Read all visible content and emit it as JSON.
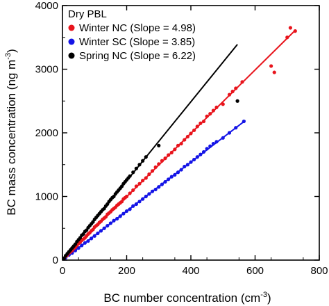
{
  "chart_data": {
    "type": "scatter",
    "xlabel": "BC number concentration (cm",
    "xlabel_sup": "-3",
    "xlabel_suffix": ")",
    "ylabel": "BC mass concentration (ng m",
    "ylabel_sup": "-3",
    "ylabel_suffix": ")",
    "xlim": [
      0,
      800
    ],
    "ylim": [
      0,
      4000
    ],
    "xticks": [
      0,
      200,
      400,
      600,
      800
    ],
    "yticks": [
      0,
      1000,
      2000,
      3000,
      4000
    ],
    "xtick_labels": [
      "0",
      "200",
      "400",
      "600",
      "800"
    ],
    "ytick_labels": [
      "0",
      "1000",
      "2000",
      "3000",
      "4000"
    ],
    "grid": false,
    "legend": {
      "title": "Dry PBL",
      "position": "top-left"
    },
    "series": [
      {
        "name": "Winter NC (Slope = 4.98)",
        "color": "#e8141c",
        "slope": 4.98,
        "fit_x_range": [
          0,
          725
        ],
        "x": [
          5,
          10,
          15,
          20,
          25,
          30,
          35,
          40,
          45,
          50,
          55,
          60,
          65,
          70,
          75,
          80,
          85,
          90,
          95,
          100,
          105,
          110,
          115,
          120,
          125,
          130,
          135,
          140,
          145,
          150,
          155,
          160,
          165,
          170,
          175,
          180,
          185,
          190,
          195,
          200,
          210,
          220,
          230,
          240,
          250,
          260,
          270,
          280,
          290,
          300,
          310,
          320,
          330,
          340,
          350,
          360,
          370,
          380,
          390,
          400,
          410,
          420,
          430,
          440,
          450,
          460,
          470,
          480,
          500,
          520,
          530,
          540,
          560,
          650,
          660,
          700,
          710,
          725
        ],
        "y": [
          30,
          60,
          80,
          110,
          130,
          150,
          180,
          200,
          230,
          260,
          280,
          310,
          330,
          350,
          380,
          410,
          430,
          460,
          480,
          520,
          540,
          560,
          590,
          610,
          640,
          660,
          680,
          720,
          740,
          760,
          790,
          810,
          830,
          860,
          880,
          900,
          920,
          960,
          980,
          1000,
          1050,
          1100,
          1160,
          1200,
          1250,
          1290,
          1350,
          1400,
          1460,
          1510,
          1560,
          1600,
          1650,
          1690,
          1740,
          1800,
          1830,
          1890,
          1940,
          1990,
          2040,
          2100,
          2150,
          2180,
          2260,
          2300,
          2350,
          2400,
          2450,
          2600,
          2650,
          2700,
          2800,
          3050,
          2950,
          3500,
          3650,
          3600
        ]
      },
      {
        "name": "Winter SC (Slope = 3.85)",
        "color": "#1414e6",
        "slope": 3.85,
        "fit_x_range": [
          0,
          570
        ],
        "x": [
          5,
          10,
          20,
          30,
          40,
          50,
          60,
          70,
          80,
          90,
          100,
          110,
          120,
          130,
          140,
          150,
          160,
          170,
          180,
          190,
          200,
          210,
          220,
          230,
          240,
          250,
          260,
          270,
          280,
          290,
          300,
          310,
          320,
          330,
          340,
          350,
          360,
          370,
          380,
          390,
          400,
          410,
          420,
          430,
          440,
          450,
          460,
          470,
          480,
          500,
          520,
          540,
          565
        ],
        "y": [
          20,
          40,
          80,
          110,
          150,
          190,
          230,
          270,
          300,
          340,
          380,
          420,
          460,
          500,
          540,
          580,
          620,
          650,
          690,
          730,
          770,
          800,
          850,
          880,
          920,
          960,
          1000,
          1040,
          1080,
          1110,
          1150,
          1190,
          1230,
          1270,
          1310,
          1340,
          1380,
          1420,
          1470,
          1500,
          1540,
          1580,
          1620,
          1660,
          1700,
          1750,
          1790,
          1830,
          1860,
          1920,
          2000,
          2080,
          2180
        ]
      },
      {
        "name": "Spring NC (Slope = 6.22)",
        "color": "#000000",
        "slope": 6.22,
        "fit_x_range": [
          0,
          545
        ],
        "x": [
          5,
          10,
          15,
          20,
          25,
          30,
          35,
          40,
          45,
          50,
          55,
          60,
          65,
          70,
          75,
          80,
          85,
          90,
          95,
          100,
          105,
          110,
          115,
          120,
          125,
          130,
          135,
          140,
          145,
          150,
          155,
          160,
          165,
          170,
          175,
          180,
          185,
          190,
          195,
          200,
          205,
          210,
          220,
          230,
          240,
          250,
          260,
          300,
          545
        ],
        "y": [
          30,
          70,
          100,
          130,
          160,
          190,
          220,
          250,
          290,
          320,
          350,
          390,
          410,
          450,
          470,
          510,
          540,
          570,
          600,
          640,
          670,
          700,
          730,
          760,
          790,
          810,
          850,
          880,
          920,
          950,
          980,
          1000,
          1040,
          1070,
          1100,
          1130,
          1160,
          1200,
          1230,
          1260,
          1290,
          1320,
          1380,
          1440,
          1500,
          1560,
          1620,
          1800,
          2500
        ]
      }
    ]
  }
}
